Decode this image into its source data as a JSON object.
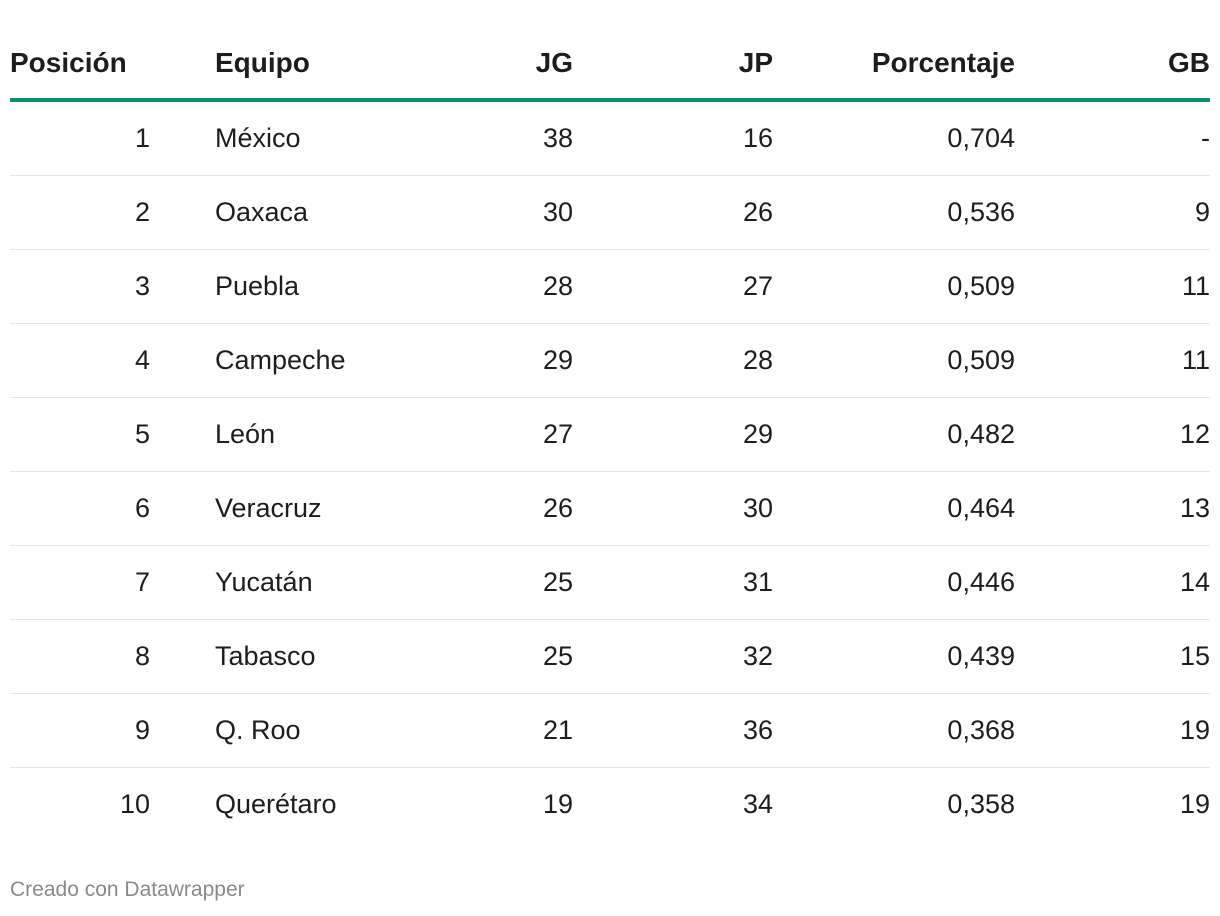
{
  "chart_data": {
    "type": "table",
    "columns": [
      "Posición",
      "Equipo",
      "JG",
      "JP",
      "Porcentaje",
      "GB"
    ],
    "rows": [
      [
        "1",
        "México",
        "38",
        "16",
        "0,704",
        "-"
      ],
      [
        "2",
        "Oaxaca",
        "30",
        "26",
        "0,536",
        "9"
      ],
      [
        "3",
        "Puebla",
        "28",
        "27",
        "0,509",
        "11"
      ],
      [
        "4",
        "Campeche",
        "29",
        "28",
        "0,509",
        "11"
      ],
      [
        "5",
        "León",
        "27",
        "29",
        "0,482",
        "12"
      ],
      [
        "6",
        "Veracruz",
        "26",
        "30",
        "0,464",
        "13"
      ],
      [
        "7",
        "Yucatán",
        "25",
        "31",
        "0,446",
        "14"
      ],
      [
        "8",
        "Tabasco",
        "25",
        "32",
        "0,439",
        "15"
      ],
      [
        "9",
        "Q. Roo",
        "21",
        "36",
        "0,368",
        "19"
      ],
      [
        "10",
        "Querétaro",
        "19",
        "34",
        "0,358",
        "19"
      ]
    ],
    "header_rule_color": "#0e8c6e"
  },
  "footer": {
    "credit": "Creado con Datawrapper"
  }
}
